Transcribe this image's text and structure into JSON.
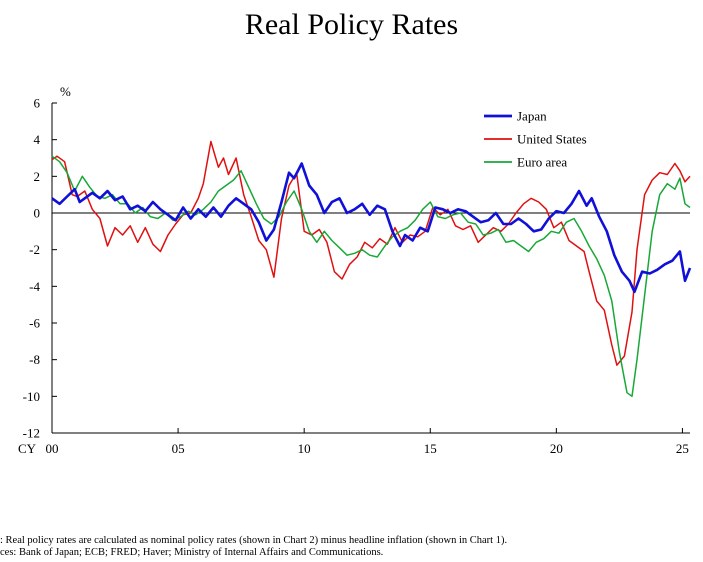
{
  "chart_data": {
    "type": "line",
    "title": "Real Policy Rates",
    "ylabel": "%",
    "xlabel": "CY",
    "ylim": [
      -12,
      6
    ],
    "yticks": [
      6,
      4,
      2,
      0,
      -2,
      -4,
      -6,
      -8,
      -10,
      -12
    ],
    "xlim": [
      2000,
      2025.3
    ],
    "xticks": [
      {
        "year": 2000,
        "label": "00"
      },
      {
        "year": 2005,
        "label": "05"
      },
      {
        "year": 2010,
        "label": "10"
      },
      {
        "year": 2015,
        "label": "15"
      },
      {
        "year": 2020,
        "label": "20"
      },
      {
        "year": 2025,
        "label": "25"
      }
    ],
    "legend_position": "top-right",
    "zero_line": true,
    "series": [
      {
        "name": "Japan",
        "color": "#1010d8",
        "x": [
          2000.0,
          2000.3,
          2000.6,
          2000.9,
          2001.1,
          2001.3,
          2001.6,
          2001.9,
          2002.2,
          2002.5,
          2002.8,
          2003.1,
          2003.4,
          2003.7,
          2004.0,
          2004.3,
          2004.6,
          2004.9,
          2005.2,
          2005.5,
          2005.8,
          2006.1,
          2006.4,
          2006.7,
          2007.0,
          2007.3,
          2007.6,
          2007.9,
          2008.2,
          2008.5,
          2008.8,
          2009.1,
          2009.4,
          2009.6,
          2009.9,
          2010.2,
          2010.5,
          2010.8,
          2011.1,
          2011.4,
          2011.7,
          2012.0,
          2012.3,
          2012.6,
          2012.9,
          2013.2,
          2013.5,
          2013.8,
          2014.0,
          2014.3,
          2014.6,
          2014.9,
          2015.2,
          2015.5,
          2015.8,
          2016.1,
          2016.4,
          2016.7,
          2017.0,
          2017.3,
          2017.6,
          2017.9,
          2018.2,
          2018.5,
          2018.8,
          2019.1,
          2019.4,
          2019.7,
          2020.0,
          2020.3,
          2020.6,
          2020.9,
          2021.2,
          2021.4,
          2021.7,
          2022.0,
          2022.3,
          2022.6,
          2022.9,
          2023.1,
          2023.4,
          2023.7,
          2024.0,
          2024.3,
          2024.6,
          2024.9,
          2025.1,
          2025.3
        ],
        "y": [
          0.8,
          0.5,
          0.9,
          1.3,
          0.6,
          0.8,
          1.1,
          0.8,
          1.2,
          0.7,
          0.9,
          0.2,
          0.4,
          0.1,
          0.6,
          0.2,
          -0.1,
          -0.4,
          0.3,
          -0.3,
          0.2,
          -0.2,
          0.3,
          -0.2,
          0.4,
          0.8,
          0.5,
          0.2,
          -0.5,
          -1.5,
          -0.9,
          0.6,
          2.2,
          1.9,
          2.7,
          1.5,
          1.0,
          0.0,
          0.6,
          0.8,
          0.0,
          0.2,
          0.5,
          -0.1,
          0.4,
          0.2,
          -1.0,
          -1.8,
          -1.2,
          -1.5,
          -0.8,
          -1.0,
          0.3,
          0.2,
          0.0,
          0.2,
          0.1,
          -0.2,
          -0.5,
          -0.4,
          0.0,
          -0.6,
          -0.6,
          -0.3,
          -0.6,
          -1.0,
          -0.9,
          -0.3,
          0.1,
          0.0,
          0.5,
          1.2,
          0.4,
          0.8,
          -0.2,
          -1.0,
          -2.3,
          -3.2,
          -3.7,
          -4.3,
          -3.2,
          -3.3,
          -3.1,
          -2.8,
          -2.6,
          -2.1,
          -3.7,
          -3.0
        ]
      },
      {
        "name": "United States",
        "color": "#e01010",
        "x": [
          2000.0,
          2000.2,
          2000.5,
          2000.8,
          2001.0,
          2001.3,
          2001.6,
          2001.9,
          2002.2,
          2002.5,
          2002.8,
          2003.1,
          2003.4,
          2003.7,
          2004.0,
          2004.3,
          2004.6,
          2004.9,
          2005.2,
          2005.5,
          2005.8,
          2006.0,
          2006.3,
          2006.6,
          2006.8,
          2007.0,
          2007.3,
          2007.6,
          2007.9,
          2008.2,
          2008.5,
          2008.8,
          2009.1,
          2009.4,
          2009.7,
          2010.0,
          2010.3,
          2010.6,
          2010.9,
          2011.2,
          2011.5,
          2011.8,
          2012.1,
          2012.4,
          2012.7,
          2013.0,
          2013.3,
          2013.6,
          2013.9,
          2014.2,
          2014.5,
          2014.8,
          2015.1,
          2015.4,
          2015.7,
          2016.0,
          2016.3,
          2016.6,
          2016.9,
          2017.2,
          2017.5,
          2017.8,
          2018.1,
          2018.4,
          2018.7,
          2019.0,
          2019.3,
          2019.6,
          2019.9,
          2020.2,
          2020.5,
          2020.8,
          2021.1,
          2021.3,
          2021.6,
          2021.9,
          2022.2,
          2022.4,
          2022.7,
          2023.0,
          2023.2,
          2023.5,
          2023.8,
          2024.1,
          2024.4,
          2024.7,
          2024.9,
          2025.1,
          2025.3
        ],
        "y": [
          2.9,
          3.1,
          2.8,
          1.0,
          0.9,
          1.2,
          0.2,
          -0.3,
          -1.8,
          -0.8,
          -1.2,
          -0.7,
          -1.6,
          -0.8,
          -1.7,
          -2.1,
          -1.2,
          -0.6,
          -0.1,
          0.0,
          0.8,
          1.6,
          3.9,
          2.5,
          3.0,
          2.1,
          3.0,
          1.0,
          -0.2,
          -1.5,
          -2.0,
          -3.5,
          -0.3,
          1.5,
          2.2,
          -1.0,
          -1.2,
          -0.9,
          -1.6,
          -3.2,
          -3.6,
          -2.8,
          -2.4,
          -1.6,
          -1.9,
          -1.4,
          -1.7,
          -0.8,
          -1.6,
          -1.2,
          -1.3,
          -1.0,
          0.3,
          -0.1,
          0.2,
          -0.7,
          -0.9,
          -0.7,
          -1.6,
          -1.2,
          -0.8,
          -1.0,
          -0.6,
          0.0,
          0.5,
          0.8,
          0.6,
          0.2,
          -0.8,
          -0.5,
          -1.5,
          -1.8,
          -2.1,
          -3.2,
          -4.8,
          -5.3,
          -7.2,
          -8.3,
          -7.8,
          -5.4,
          -2.0,
          1.0,
          1.8,
          2.2,
          2.1,
          2.7,
          2.3,
          1.7,
          2.0
        ]
      },
      {
        "name": "Euro area",
        "color": "#18a838",
        "x": [
          2000.0,
          2000.3,
          2000.6,
          2000.9,
          2001.2,
          2001.5,
          2001.8,
          2002.1,
          2002.4,
          2002.7,
          2003.0,
          2003.3,
          2003.6,
          2003.9,
          2004.2,
          2004.5,
          2004.8,
          2005.1,
          2005.4,
          2005.7,
          2006.0,
          2006.3,
          2006.6,
          2006.9,
          2007.2,
          2007.5,
          2007.8,
          2008.1,
          2008.4,
          2008.7,
          2009.0,
          2009.3,
          2009.6,
          2009.9,
          2010.2,
          2010.5,
          2010.8,
          2011.1,
          2011.4,
          2011.7,
          2012.0,
          2012.3,
          2012.6,
          2012.9,
          2013.2,
          2013.5,
          2013.8,
          2014.1,
          2014.4,
          2014.7,
          2015.0,
          2015.3,
          2015.6,
          2015.9,
          2016.2,
          2016.5,
          2016.8,
          2017.1,
          2017.4,
          2017.7,
          2018.0,
          2018.3,
          2018.6,
          2018.9,
          2019.2,
          2019.5,
          2019.8,
          2020.1,
          2020.4,
          2020.7,
          2021.0,
          2021.3,
          2021.6,
          2021.9,
          2022.2,
          2022.5,
          2022.8,
          2023.0,
          2023.2,
          2023.5,
          2023.8,
          2024.1,
          2024.4,
          2024.7,
          2024.9,
          2025.1,
          2025.3
        ],
        "y": [
          3.1,
          2.8,
          2.2,
          1.2,
          2.0,
          1.4,
          0.9,
          0.8,
          1.0,
          0.5,
          0.5,
          0.0,
          0.3,
          -0.2,
          -0.3,
          0.0,
          -0.4,
          -0.2,
          0.1,
          -0.1,
          0.2,
          0.6,
          1.2,
          1.5,
          1.8,
          2.3,
          1.4,
          0.5,
          -0.3,
          -0.6,
          -0.2,
          0.6,
          1.2,
          0.2,
          -1.0,
          -1.6,
          -1.0,
          -1.5,
          -1.9,
          -2.3,
          -2.2,
          -2.0,
          -2.3,
          -2.4,
          -1.8,
          -1.3,
          -1.0,
          -0.8,
          -0.4,
          0.2,
          0.6,
          -0.2,
          -0.3,
          -0.1,
          0.0,
          -0.5,
          -0.6,
          -1.2,
          -1.1,
          -0.9,
          -1.6,
          -1.5,
          -1.8,
          -2.1,
          -1.6,
          -1.4,
          -1.0,
          -1.1,
          -0.5,
          -0.3,
          -1.0,
          -1.8,
          -2.5,
          -3.4,
          -4.8,
          -7.6,
          -9.8,
          -10.0,
          -8.0,
          -4.5,
          -1.0,
          1.0,
          1.6,
          1.3,
          1.9,
          0.5,
          0.3
        ]
      }
    ]
  },
  "notes": {
    "line1": ": Real policy rates are calculated as nominal policy rates (shown in Chart 2) minus headline inflation (shown in Chart 1).",
    "line2": "ces: Bank of Japan; ECB; FRED; Haver; Ministry of Internal Affairs and Communications."
  }
}
